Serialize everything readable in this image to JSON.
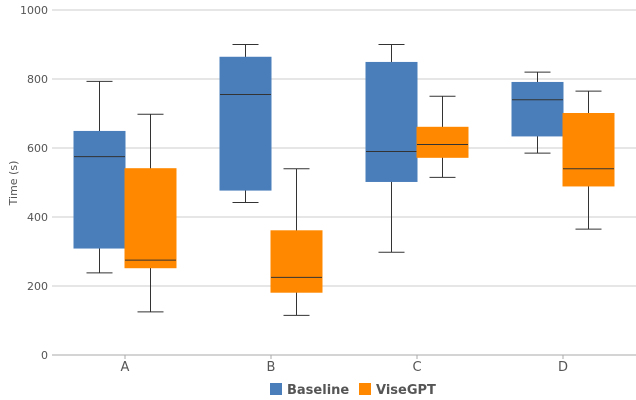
{
  "chart_data": {
    "type": "box",
    "title": "",
    "xlabel": "",
    "ylabel": "Time (s)",
    "ylim": [
      0,
      1000
    ],
    "yticks": [
      0,
      200,
      400,
      600,
      800,
      1000
    ],
    "grid": true,
    "legend_position": "bottom",
    "categories": [
      "A",
      "B",
      "C",
      "D"
    ],
    "series": [
      {
        "name": "Baseline",
        "color": "#4a7ebb",
        "boxes": [
          {
            "min": 238,
            "q1": 310,
            "median": 575,
            "q3": 648,
            "max": 793
          },
          {
            "min": 442,
            "q1": 478,
            "median": 755,
            "q3": 863,
            "max": 900
          },
          {
            "min": 298,
            "q1": 503,
            "median": 590,
            "q3": 848,
            "max": 900
          },
          {
            "min": 585,
            "q1": 635,
            "median": 740,
            "q3": 790,
            "max": 820
          }
        ]
      },
      {
        "name": "ViseGPT",
        "color": "#ff8800",
        "boxes": [
          {
            "min": 125,
            "q1": 253,
            "median": 275,
            "q3": 540,
            "max": 698
          },
          {
            "min": 115,
            "q1": 182,
            "median": 225,
            "q3": 360,
            "max": 540
          },
          {
            "min": 515,
            "q1": 573,
            "median": 610,
            "q3": 660,
            "max": 750
          },
          {
            "min": 365,
            "q1": 490,
            "median": 540,
            "q3": 700,
            "max": 765
          }
        ]
      }
    ]
  }
}
